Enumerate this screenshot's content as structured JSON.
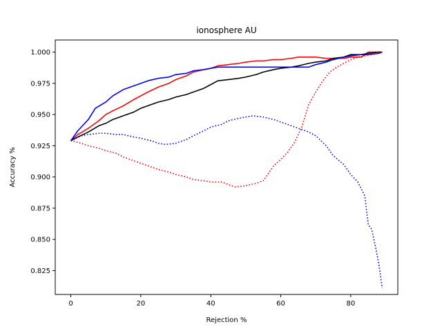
{
  "chart_data": {
    "type": "line",
    "title": "ionosphere AU",
    "xlabel": "Rejection %",
    "ylabel": "Accuracy %",
    "xlim": [
      -4.45,
      93.45
    ],
    "ylim": [
      0.8059,
      1.0097
    ],
    "xticks": [
      0,
      20,
      40,
      60,
      80
    ],
    "yticks": [
      0.825,
      0.85,
      0.875,
      0.9,
      0.925,
      0.95,
      0.975,
      1.0
    ],
    "ytick_labels": [
      "0.825",
      "0.850",
      "0.875",
      "0.900",
      "0.925",
      "0.950",
      "0.975",
      "1.000"
    ],
    "grid": false,
    "legend": false,
    "series": [
      {
        "color": "#ff0000",
        "style": "solid",
        "x": [
          0,
          2,
          5,
          8,
          10,
          12,
          15,
          18,
          20,
          22,
          25,
          28,
          30,
          33,
          35,
          38,
          40,
          42,
          45,
          48,
          50,
          53,
          55,
          58,
          60,
          63,
          65,
          68,
          70,
          73,
          75,
          78,
          80,
          83,
          85,
          88,
          89
        ],
        "y": [
          0.929,
          0.934,
          0.939,
          0.945,
          0.95,
          0.953,
          0.957,
          0.962,
          0.965,
          0.968,
          0.972,
          0.975,
          0.978,
          0.981,
          0.984,
          0.986,
          0.987,
          0.989,
          0.99,
          0.991,
          0.992,
          0.993,
          0.993,
          0.994,
          0.994,
          0.995,
          0.996,
          0.996,
          0.996,
          0.995,
          0.995,
          0.995,
          0.996,
          0.996,
          1.0,
          1.0,
          1.0
        ]
      },
      {
        "color": "#000000",
        "style": "solid",
        "x": [
          0,
          2,
          5,
          8,
          10,
          12,
          15,
          18,
          20,
          22,
          25,
          28,
          30,
          33,
          35,
          38,
          40,
          42,
          45,
          48,
          50,
          53,
          55,
          58,
          60,
          63,
          65,
          68,
          70,
          73,
          75,
          78,
          80,
          83,
          85,
          88,
          89
        ],
        "y": [
          0.929,
          0.932,
          0.936,
          0.941,
          0.943,
          0.946,
          0.949,
          0.952,
          0.955,
          0.957,
          0.96,
          0.962,
          0.964,
          0.966,
          0.968,
          0.971,
          0.974,
          0.977,
          0.978,
          0.979,
          0.98,
          0.982,
          0.984,
          0.986,
          0.987,
          0.988,
          0.989,
          0.991,
          0.992,
          0.993,
          0.995,
          0.996,
          0.998,
          0.998,
          0.999,
          1.0,
          1.0
        ]
      },
      {
        "color": "#0000ff",
        "style": "solid",
        "x": [
          0,
          2,
          5,
          7,
          10,
          12,
          15,
          18,
          20,
          22,
          25,
          28,
          30,
          33,
          35,
          38,
          40,
          42,
          45,
          48,
          50,
          53,
          55,
          58,
          60,
          63,
          65,
          68,
          70,
          73,
          75,
          78,
          80,
          83,
          85,
          88,
          89
        ],
        "y": [
          0.929,
          0.937,
          0.946,
          0.955,
          0.96,
          0.965,
          0.97,
          0.973,
          0.975,
          0.977,
          0.979,
          0.98,
          0.982,
          0.983,
          0.985,
          0.986,
          0.987,
          0.988,
          0.988,
          0.988,
          0.988,
          0.988,
          0.988,
          0.988,
          0.988,
          0.988,
          0.988,
          0.988,
          0.99,
          0.992,
          0.994,
          0.996,
          0.997,
          0.998,
          0.998,
          0.999,
          1.0
        ]
      },
      {
        "color": "#ff0000",
        "style": "dotted",
        "x": [
          0,
          3,
          5,
          8,
          10,
          13,
          15,
          18,
          20,
          23,
          25,
          28,
          30,
          33,
          35,
          38,
          40,
          43,
          45,
          47,
          50,
          53,
          55,
          57,
          58,
          60,
          62,
          64,
          66,
          68,
          70,
          72,
          74,
          76,
          78,
          80,
          82,
          84,
          86,
          88,
          89
        ],
        "y": [
          0.929,
          0.927,
          0.925,
          0.923,
          0.921,
          0.919,
          0.916,
          0.913,
          0.911,
          0.908,
          0.906,
          0.904,
          0.902,
          0.9,
          0.898,
          0.897,
          0.896,
          0.896,
          0.894,
          0.892,
          0.893,
          0.895,
          0.897,
          0.905,
          0.909,
          0.914,
          0.92,
          0.928,
          0.94,
          0.958,
          0.968,
          0.977,
          0.984,
          0.988,
          0.991,
          0.994,
          0.996,
          0.997,
          0.998,
          0.999,
          1.0
        ]
      },
      {
        "color": "#0000ff",
        "style": "dotted",
        "x": [
          0,
          3,
          5,
          8,
          10,
          13,
          15,
          18,
          20,
          23,
          25,
          27,
          30,
          33,
          35,
          38,
          40,
          43,
          45,
          48,
          50,
          52,
          55,
          58,
          60,
          63,
          65,
          68,
          70,
          73,
          75,
          78,
          80,
          82,
          84,
          85,
          86,
          87,
          88,
          89
        ],
        "y": [
          0.929,
          0.933,
          0.934,
          0.935,
          0.935,
          0.934,
          0.934,
          0.932,
          0.931,
          0.929,
          0.927,
          0.926,
          0.927,
          0.93,
          0.933,
          0.937,
          0.94,
          0.942,
          0.945,
          0.947,
          0.948,
          0.949,
          0.948,
          0.946,
          0.944,
          0.941,
          0.939,
          0.936,
          0.933,
          0.925,
          0.917,
          0.91,
          0.902,
          0.896,
          0.885,
          0.862,
          0.858,
          0.845,
          0.831,
          0.811
        ]
      }
    ]
  }
}
